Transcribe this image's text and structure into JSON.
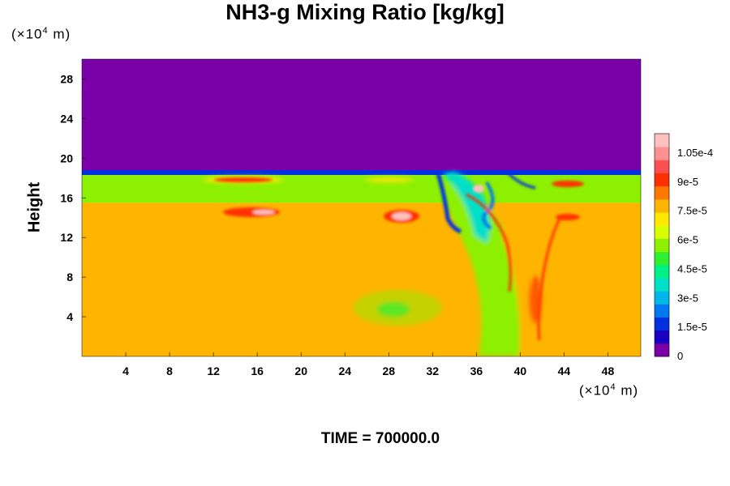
{
  "chart_data": {
    "type": "heatmap",
    "title": "NH3-g Mixing Ratio [kg/kg]",
    "ylabel": "Height",
    "x_unit": "(×10",
    "x_unit_exp": "4",
    "x_unit_tail": " m)",
    "y_unit": "(×10",
    "y_unit_exp": "4",
    "y_unit_tail": " m)",
    "xlim": [
      0,
      51
    ],
    "ylim": [
      0,
      30
    ],
    "x_ticks": [
      4,
      8,
      12,
      16,
      20,
      24,
      28,
      32,
      36,
      40,
      44,
      48
    ],
    "y_ticks": [
      4,
      8,
      12,
      16,
      20,
      24,
      28
    ],
    "colorbar": {
      "range": [
        0,
        0.000115
      ],
      "labels": [
        "0",
        "1.5e-5",
        "3e-5",
        "4.5e-5",
        "6e-5",
        "7.5e-5",
        "9e-5",
        "1.05e-4"
      ],
      "label_values": [
        0,
        1.5e-05,
        3e-05,
        4.5e-05,
        6e-05,
        7.5e-05,
        9e-05,
        0.000105
      ],
      "colors": [
        "#7a00a8",
        "#1a00c0",
        "#0030e0",
        "#0078f0",
        "#00b8e8",
        "#00e0c8",
        "#00f088",
        "#30f030",
        "#8cf000",
        "#d8ff00",
        "#ffe800",
        "#ffb400",
        "#ff7800",
        "#ff3000",
        "#ff5050",
        "#ff9090",
        "#ffc0c0"
      ]
    },
    "layers": [
      {
        "name": "upper-layer",
        "y_from": 18.8,
        "y_to": 30,
        "value": 0
      },
      {
        "name": "transition-band",
        "y_from": 18.3,
        "y_to": 18.8,
        "value": 1.5e-05
      },
      {
        "name": "green-band",
        "y_from": 15.5,
        "y_to": 18.3,
        "value": 6e-05
      },
      {
        "name": "lower-layer",
        "y_from": 0,
        "y_to": 15.5,
        "value": 7.7e-05
      }
    ]
  },
  "time_label": "TIME = 700000.0"
}
